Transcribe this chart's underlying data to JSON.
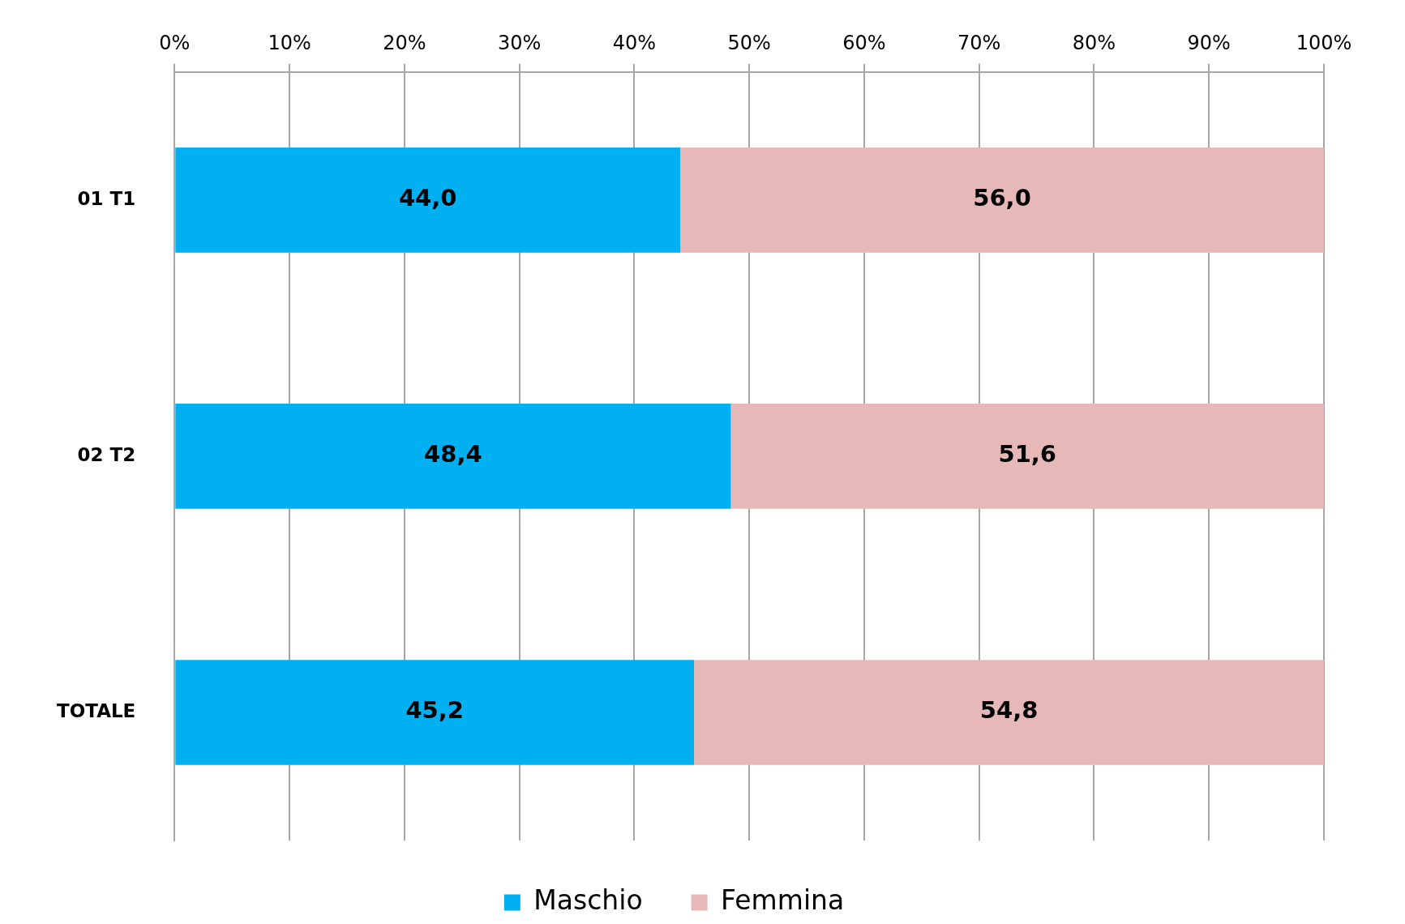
{
  "chart_data": {
    "type": "bar",
    "orientation": "horizontal",
    "stacked": true,
    "categories": [
      "01 T1",
      "02 T2",
      "TOTALE"
    ],
    "series": [
      {
        "name": "Maschio",
        "color": "#00b0f0",
        "values": [
          44.0,
          48.4,
          45.2
        ],
        "value_labels": [
          "44,0",
          "48,4",
          "45,2"
        ]
      },
      {
        "name": "Femmina",
        "color": "#e6b9b8",
        "values": [
          56.0,
          51.6,
          54.8
        ],
        "value_labels": [
          "56,0",
          "51,6",
          "54,8"
        ]
      }
    ],
    "xlim": [
      0,
      100
    ],
    "xticks": [
      {
        "value": 0,
        "label": "0%"
      },
      {
        "value": 10,
        "label": "10%"
      },
      {
        "value": 20,
        "label": "20%"
      },
      {
        "value": 30,
        "label": "30%"
      },
      {
        "value": 40,
        "label": "40%"
      },
      {
        "value": 50,
        "label": "50%"
      },
      {
        "value": 60,
        "label": "60%"
      },
      {
        "value": 70,
        "label": "70%"
      },
      {
        "value": 80,
        "label": "80%"
      },
      {
        "value": 90,
        "label": "90%"
      },
      {
        "value": 100,
        "label": "100%"
      }
    ],
    "grid": "x",
    "legend": "bottom"
  }
}
